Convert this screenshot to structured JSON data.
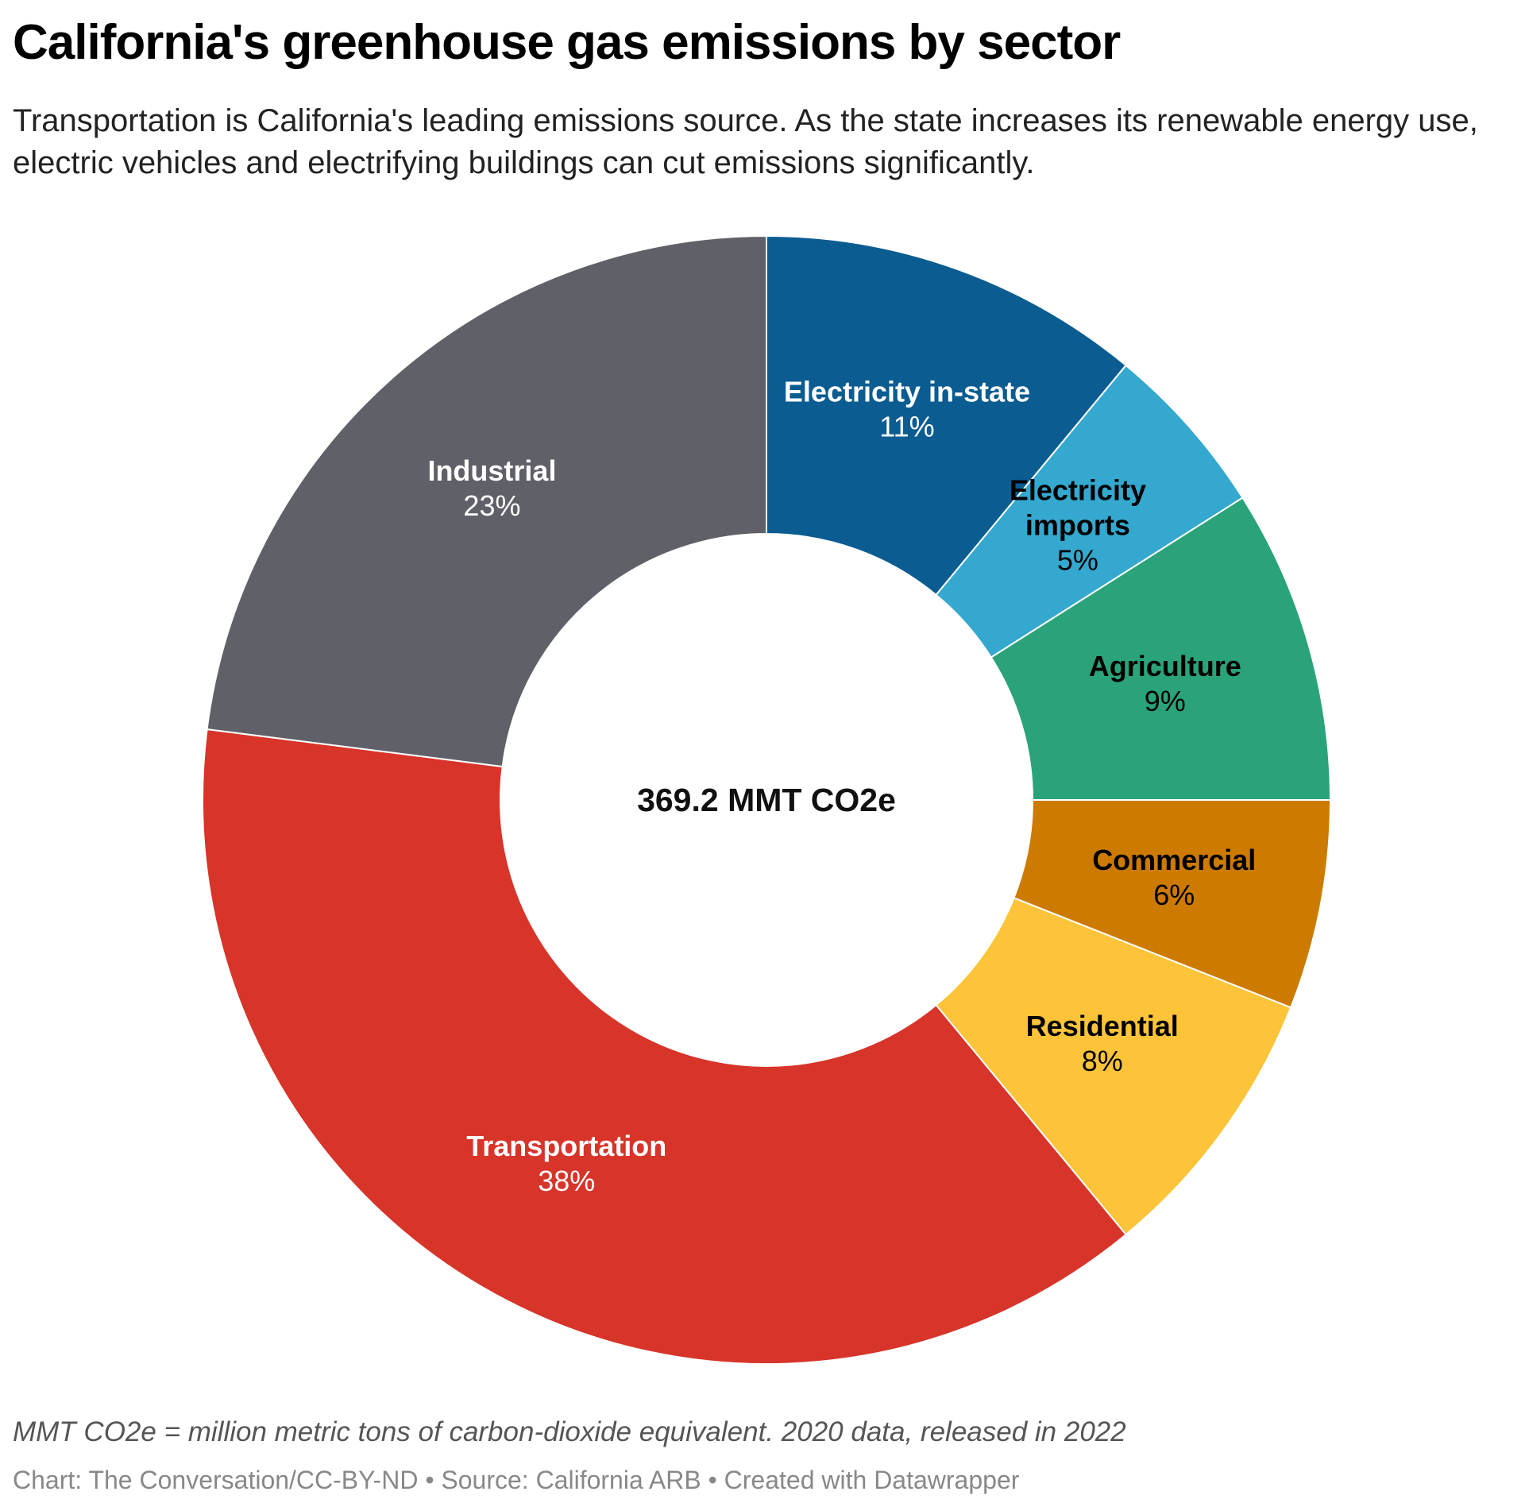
{
  "title": "California's greenhouse gas emissions by sector",
  "subtitle": "Transportation is California's leading emissions source. As the state increases its renewable energy use, electric vehicles and electrifying buildings can cut emissions significantly.",
  "note": "MMT CO2e = million metric tons of carbon-dioxide equivalent. 2020 data, released in 2022",
  "source": "Chart: The Conversation/CC-BY-ND • Source: California ARB • Created with Datawrapper",
  "chart_data": {
    "type": "pie",
    "variant": "donut",
    "title": "California's greenhouse gas emissions by sector",
    "center_label": "369.2 MMT CO2e",
    "unit": "%",
    "slices": [
      {
        "label": "Electricity in-state",
        "value": 11,
        "display": "11%",
        "color": "#0a5c91",
        "text_color": "#ffffff"
      },
      {
        "label": "Electricity imports",
        "value": 5,
        "display": "5%",
        "color": "#34a8cf",
        "text_color": "#000000"
      },
      {
        "label": "Agriculture",
        "value": 9,
        "display": "9%",
        "color": "#2aa37a",
        "text_color": "#000000"
      },
      {
        "label": "Commercial",
        "value": 6,
        "display": "6%",
        "color": "#cc7a00",
        "text_color": "#000000"
      },
      {
        "label": "Residential",
        "value": 8,
        "display": "8%",
        "color": "#fdc43a",
        "text_color": "#000000"
      },
      {
        "label": "Transportation",
        "value": 38,
        "display": "38%",
        "color": "#d7342a",
        "text_color": "#ffffff"
      },
      {
        "label": "Industrial",
        "value": 23,
        "display": "23%",
        "color": "#606068",
        "text_color": "#ffffff"
      }
    ]
  }
}
